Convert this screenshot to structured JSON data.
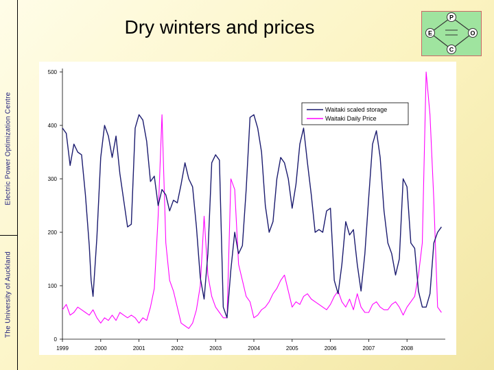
{
  "title": "Dry winters and prices",
  "sidebar": {
    "top_text": "Electric Power Optimization Centre",
    "bottom_text": "The University of Auckland"
  },
  "logo": {
    "top": "P",
    "left": "E",
    "right": "O",
    "bottom": "C"
  },
  "colors": {
    "storage": "#1a1a6e",
    "price": "#ff00ff"
  },
  "chart_data": {
    "type": "line",
    "title": "",
    "xlabel": "",
    "ylabel": "",
    "ylim": [
      0,
      500
    ],
    "yticks": [
      0,
      100,
      200,
      300,
      400,
      500
    ],
    "xlim": [
      1999,
      2009
    ],
    "xticks": [
      {
        "value": 1999,
        "label": "1999"
      },
      {
        "value": 2000,
        "label": "2000"
      },
      {
        "value": 2001,
        "label": "2001"
      },
      {
        "value": 2002,
        "label": "2002"
      },
      {
        "value": 2003,
        "label": "2003"
      },
      {
        "value": 2004,
        "label": "2004"
      },
      {
        "value": 2005,
        "label": "2005"
      },
      {
        "value": 2006,
        "label": "2006"
      },
      {
        "value": 2007,
        "label": "2007"
      },
      {
        "value": 2008,
        "label": "2008"
      }
    ],
    "legend_position": "top-right",
    "series": [
      {
        "name": "Waitaki scaled storage",
        "color": "#1a1a6e",
        "x": [
          1999.0,
          1999.1,
          1999.2,
          1999.3,
          1999.4,
          1999.5,
          1999.6,
          1999.7,
          1999.75,
          1999.8,
          1999.9,
          2000.0,
          2000.1,
          2000.2,
          2000.3,
          2000.4,
          2000.5,
          2000.6,
          2000.7,
          2000.8,
          2000.9,
          2001.0,
          2001.1,
          2001.2,
          2001.3,
          2001.4,
          2001.5,
          2001.6,
          2001.7,
          2001.8,
          2001.9,
          2002.0,
          2002.1,
          2002.2,
          2002.3,
          2002.4,
          2002.5,
          2002.6,
          2002.7,
          2002.8,
          2002.9,
          2003.0,
          2003.1,
          2003.2,
          2003.3,
          2003.4,
          2003.5,
          2003.6,
          2003.7,
          2003.8,
          2003.9,
          2004.0,
          2004.1,
          2004.2,
          2004.3,
          2004.4,
          2004.5,
          2004.6,
          2004.7,
          2004.8,
          2004.9,
          2005.0,
          2005.1,
          2005.2,
          2005.3,
          2005.4,
          2005.5,
          2005.6,
          2005.7,
          2005.8,
          2005.9,
          2006.0,
          2006.1,
          2006.2,
          2006.3,
          2006.4,
          2006.5,
          2006.6,
          2006.7,
          2006.8,
          2006.9,
          2007.0,
          2007.1,
          2007.2,
          2007.3,
          2007.4,
          2007.5,
          2007.6,
          2007.7,
          2007.8,
          2007.9,
          2008.0,
          2008.1,
          2008.2,
          2008.3,
          2008.4,
          2008.5,
          2008.6,
          2008.7,
          2008.8,
          2008.9
        ],
        "values": [
          395,
          385,
          325,
          365,
          350,
          345,
          270,
          175,
          110,
          80,
          190,
          340,
          400,
          380,
          340,
          380,
          310,
          260,
          210,
          215,
          395,
          420,
          410,
          370,
          295,
          305,
          250,
          280,
          270,
          240,
          260,
          255,
          290,
          330,
          300,
          285,
          210,
          115,
          75,
          160,
          330,
          345,
          335,
          60,
          40,
          130,
          200,
          160,
          175,
          280,
          415,
          420,
          395,
          350,
          250,
          200,
          220,
          300,
          340,
          330,
          300,
          245,
          290,
          365,
          395,
          330,
          270,
          200,
          205,
          200,
          240,
          245,
          110,
          85,
          140,
          220,
          195,
          205,
          140,
          90,
          160,
          265,
          365,
          390,
          340,
          240,
          180,
          160,
          120,
          150,
          300,
          285,
          180,
          170,
          90,
          60,
          60,
          85,
          180,
          200,
          210
        ]
      },
      {
        "name": "Waitaki Daily Price",
        "color": "#ff00ff",
        "x": [
          1999.0,
          1999.1,
          1999.2,
          1999.3,
          1999.4,
          1999.5,
          1999.6,
          1999.7,
          1999.8,
          1999.9,
          2000.0,
          2000.1,
          2000.2,
          2000.3,
          2000.4,
          2000.5,
          2000.6,
          2000.7,
          2000.8,
          2000.9,
          2001.0,
          2001.1,
          2001.2,
          2001.3,
          2001.4,
          2001.5,
          2001.6,
          2001.7,
          2001.8,
          2001.9,
          2002.0,
          2002.1,
          2002.2,
          2002.3,
          2002.4,
          2002.5,
          2002.6,
          2002.7,
          2002.8,
          2002.9,
          2003.0,
          2003.1,
          2003.2,
          2003.3,
          2003.4,
          2003.5,
          2003.6,
          2003.7,
          2003.8,
          2003.9,
          2004.0,
          2004.1,
          2004.2,
          2004.3,
          2004.4,
          2004.5,
          2004.6,
          2004.7,
          2004.8,
          2004.9,
          2005.0,
          2005.1,
          2005.2,
          2005.3,
          2005.4,
          2005.5,
          2005.6,
          2005.7,
          2005.8,
          2005.9,
          2006.0,
          2006.1,
          2006.2,
          2006.3,
          2006.4,
          2006.5,
          2006.6,
          2006.7,
          2006.8,
          2006.9,
          2007.0,
          2007.1,
          2007.2,
          2007.3,
          2007.4,
          2007.5,
          2007.6,
          2007.7,
          2007.8,
          2007.9,
          2008.0,
          2008.1,
          2008.2,
          2008.3,
          2008.4,
          2008.5,
          2008.6,
          2008.7,
          2008.8,
          2008.9
        ],
        "values": [
          55,
          65,
          45,
          50,
          60,
          55,
          50,
          45,
          55,
          40,
          30,
          40,
          35,
          45,
          35,
          50,
          45,
          40,
          45,
          40,
          30,
          40,
          35,
          60,
          95,
          230,
          420,
          180,
          110,
          90,
          60,
          30,
          25,
          20,
          30,
          55,
          100,
          230,
          120,
          80,
          60,
          50,
          40,
          40,
          300,
          280,
          140,
          110,
          80,
          70,
          40,
          45,
          55,
          60,
          70,
          85,
          95,
          110,
          120,
          90,
          60,
          70,
          65,
          80,
          85,
          75,
          70,
          65,
          60,
          55,
          65,
          80,
          90,
          70,
          60,
          75,
          55,
          85,
          60,
          50,
          50,
          65,
          70,
          60,
          55,
          55,
          65,
          70,
          60,
          45,
          60,
          70,
          80,
          120,
          180,
          500,
          420,
          260,
          60,
          50
        ]
      }
    ]
  }
}
